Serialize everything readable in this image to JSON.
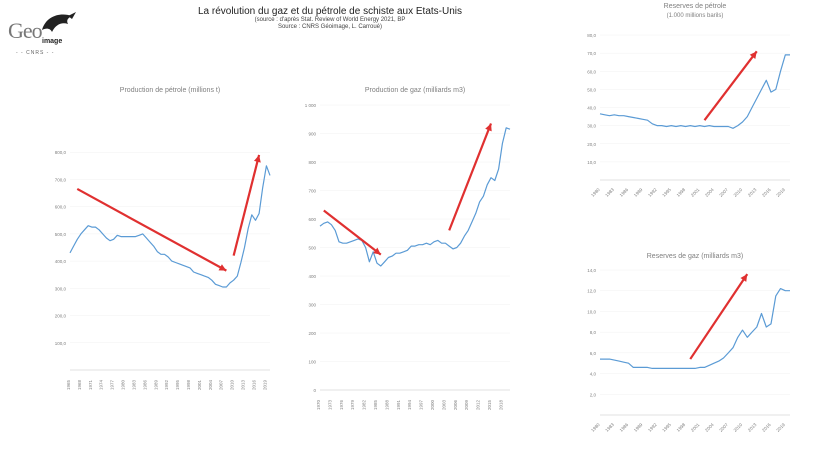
{
  "header": {
    "title": "La révolution du gaz et du pétrole de schiste aux Etats-Unis",
    "source1": "(source : d'après Stat. Review of World Energy 2021, BP",
    "source2": "Source : CNRS Géoimage, L. Carroué)"
  },
  "logo": {
    "geo": "Geo",
    "image": "image",
    "cnrs": "- - CNRS - -"
  },
  "colors": {
    "series": "#5b9bd5",
    "arrow": "#e03030",
    "axis": "#d9d9d9",
    "text": "#7f7f7f"
  },
  "chart_data": [
    {
      "id": "oil-production",
      "type": "line",
      "title": "Production de pétrole (millions t)",
      "ylim": [
        0,
        900
      ],
      "y_ticks": [
        "100,0",
        "200,0",
        "300,0",
        "400,0",
        "500,0",
        "600,0",
        "700,0",
        "800,0"
      ],
      "y_tick_values": [
        100,
        200,
        300,
        400,
        500,
        600,
        700,
        800
      ],
      "x_labels": [
        "1965",
        "1968",
        "1971",
        "1974",
        "1977",
        "1980",
        "1983",
        "1986",
        "1989",
        "1992",
        "1995",
        "1998",
        "2001",
        "2004",
        "2007",
        "2010",
        "2013",
        "2016",
        "2019"
      ],
      "x": [
        1965,
        1966,
        1967,
        1968,
        1969,
        1970,
        1971,
        1972,
        1973,
        1974,
        1975,
        1976,
        1977,
        1978,
        1979,
        1980,
        1981,
        1982,
        1983,
        1984,
        1985,
        1986,
        1987,
        1988,
        1989,
        1990,
        1991,
        1992,
        1993,
        1994,
        1995,
        1996,
        1997,
        1998,
        1999,
        2000,
        2001,
        2002,
        2003,
        2004,
        2005,
        2006,
        2007,
        2008,
        2009,
        2010,
        2011,
        2012,
        2013,
        2014,
        2015,
        2016,
        2017,
        2018,
        2019,
        2020
      ],
      "series": [
        {
          "values": [
            430,
            455,
            480,
            500,
            515,
            530,
            525,
            525,
            515,
            500,
            485,
            475,
            480,
            495,
            490,
            490,
            490,
            490,
            490,
            495,
            500,
            485,
            470,
            455,
            435,
            425,
            425,
            415,
            400,
            395,
            390,
            385,
            380,
            375,
            360,
            355,
            350,
            345,
            340,
            330,
            315,
            310,
            305,
            305,
            320,
            330,
            345,
            395,
            450,
            520,
            570,
            550,
            575,
            670,
            750,
            715
          ]
        }
      ],
      "arrows": [
        {
          "from": [
            1967,
            665
          ],
          "to": [
            2008,
            365
          ]
        },
        {
          "from": [
            2010,
            420
          ],
          "to": [
            2017,
            790
          ]
        }
      ]
    },
    {
      "id": "gas-production",
      "type": "line",
      "title": "Production de gaz (milliards m3)",
      "ylim": [
        0,
        1000
      ],
      "y_ticks": [
        "0",
        "100",
        "200",
        "300",
        "400",
        "500",
        "600",
        "700",
        "800",
        "900",
        "1 000"
      ],
      "y_tick_values": [
        0,
        100,
        200,
        300,
        400,
        500,
        600,
        700,
        800,
        900,
        1000
      ],
      "x_labels": [
        "1970",
        "1973",
        "1976",
        "1979",
        "1982",
        "1985",
        "1988",
        "1991",
        "1994",
        "1997",
        "2000",
        "2003",
        "2006",
        "2009",
        "2012",
        "2015",
        "2018"
      ],
      "x": [
        1970,
        1971,
        1972,
        1973,
        1974,
        1975,
        1976,
        1977,
        1978,
        1979,
        1980,
        1981,
        1982,
        1983,
        1984,
        1985,
        1986,
        1987,
        1988,
        1989,
        1990,
        1991,
        1992,
        1993,
        1994,
        1995,
        1996,
        1997,
        1998,
        1999,
        2000,
        2001,
        2002,
        2003,
        2004,
        2005,
        2006,
        2007,
        2008,
        2009,
        2010,
        2011,
        2012,
        2013,
        2014,
        2015,
        2016,
        2017,
        2018,
        2019,
        2020
      ],
      "series": [
        {
          "values": [
            575,
            585,
            590,
            580,
            560,
            520,
            515,
            515,
            520,
            525,
            530,
            525,
            500,
            450,
            485,
            445,
            435,
            450,
            465,
            470,
            480,
            480,
            485,
            490,
            505,
            505,
            510,
            510,
            515,
            510,
            520,
            525,
            515,
            515,
            505,
            495,
            500,
            515,
            540,
            560,
            590,
            620,
            660,
            680,
            720,
            745,
            735,
            775,
            865,
            920,
            915
          ]
        }
      ],
      "arrows": [
        {
          "from": [
            1971,
            630
          ],
          "to": [
            1986,
            475
          ]
        },
        {
          "from": [
            2004,
            560
          ],
          "to": [
            2015,
            935
          ]
        }
      ]
    },
    {
      "id": "oil-reserves",
      "type": "line",
      "title": "Reserves de pétrole",
      "subtitle": "(1.000 millions barils)",
      "ylim": [
        0,
        80
      ],
      "y_ticks": [
        "10,0",
        "20,0",
        "30,0",
        "40,0",
        "50,0",
        "60,0",
        "70,0",
        "80,0"
      ],
      "y_tick_values": [
        10,
        20,
        30,
        40,
        50,
        60,
        70,
        80
      ],
      "x_labels": [
        "1980",
        "1983",
        "1986",
        "1989",
        "1992",
        "1995",
        "1998",
        "2001",
        "2004",
        "2007",
        "2010",
        "2013",
        "2016",
        "2019"
      ],
      "x": [
        1980,
        1981,
        1982,
        1983,
        1984,
        1985,
        1986,
        1987,
        1988,
        1989,
        1990,
        1991,
        1992,
        1993,
        1994,
        1995,
        1996,
        1997,
        1998,
        1999,
        2000,
        2001,
        2002,
        2003,
        2004,
        2005,
        2006,
        2007,
        2008,
        2009,
        2010,
        2011,
        2012,
        2013,
        2014,
        2015,
        2016,
        2017,
        2018,
        2019,
        2020
      ],
      "series": [
        {
          "values": [
            36.5,
            36,
            35.5,
            36,
            35.5,
            35.5,
            35,
            34.5,
            34,
            33.5,
            33,
            31,
            30,
            30,
            29.5,
            30,
            29.5,
            30,
            29.5,
            30,
            29.5,
            30,
            29.5,
            30,
            29.5,
            29.5,
            29.5,
            29.5,
            28.5,
            30,
            32,
            35,
            40,
            45,
            50,
            55,
            48.5,
            50,
            60,
            69,
            69
          ]
        }
      ],
      "arrows": [
        {
          "from": [
            2002,
            33
          ],
          "to": [
            2013,
            71
          ]
        }
      ]
    },
    {
      "id": "gas-reserves",
      "type": "line",
      "title": "Reserves de gaz (milliards m3)",
      "ylim": [
        0,
        14
      ],
      "y_ticks": [
        "2,0",
        "4,0",
        "6,0",
        "8,0",
        "10,0",
        "12,0",
        "14,0"
      ],
      "y_tick_values": [
        2,
        4,
        6,
        8,
        10,
        12,
        14
      ],
      "x_labels": [
        "1980",
        "1983",
        "1986",
        "1989",
        "1992",
        "1995",
        "1998",
        "2001",
        "2004",
        "2007",
        "2010",
        "2013",
        "2016",
        "2019"
      ],
      "x": [
        1980,
        1981,
        1982,
        1983,
        1984,
        1985,
        1986,
        1987,
        1988,
        1989,
        1990,
        1991,
        1992,
        1993,
        1994,
        1995,
        1996,
        1997,
        1998,
        1999,
        2000,
        2001,
        2002,
        2003,
        2004,
        2005,
        2006,
        2007,
        2008,
        2009,
        2010,
        2011,
        2012,
        2013,
        2014,
        2015,
        2016,
        2017,
        2018,
        2019,
        2020
      ],
      "series": [
        {
          "values": [
            5.4,
            5.4,
            5.4,
            5.3,
            5.2,
            5.1,
            5.0,
            4.6,
            4.6,
            4.6,
            4.6,
            4.5,
            4.5,
            4.5,
            4.5,
            4.5,
            4.5,
            4.5,
            4.5,
            4.5,
            4.5,
            4.6,
            4.6,
            4.8,
            5.0,
            5.2,
            5.5,
            6.0,
            6.5,
            7.5,
            8.2,
            7.5,
            8.0,
            8.5,
            9.8,
            8.5,
            8.8,
            11.5,
            12.2,
            12.0,
            12.0
          ]
        }
      ],
      "arrows": [
        {
          "from": [
            1999,
            5.4
          ],
          "to": [
            2011,
            13.6
          ]
        }
      ]
    }
  ]
}
